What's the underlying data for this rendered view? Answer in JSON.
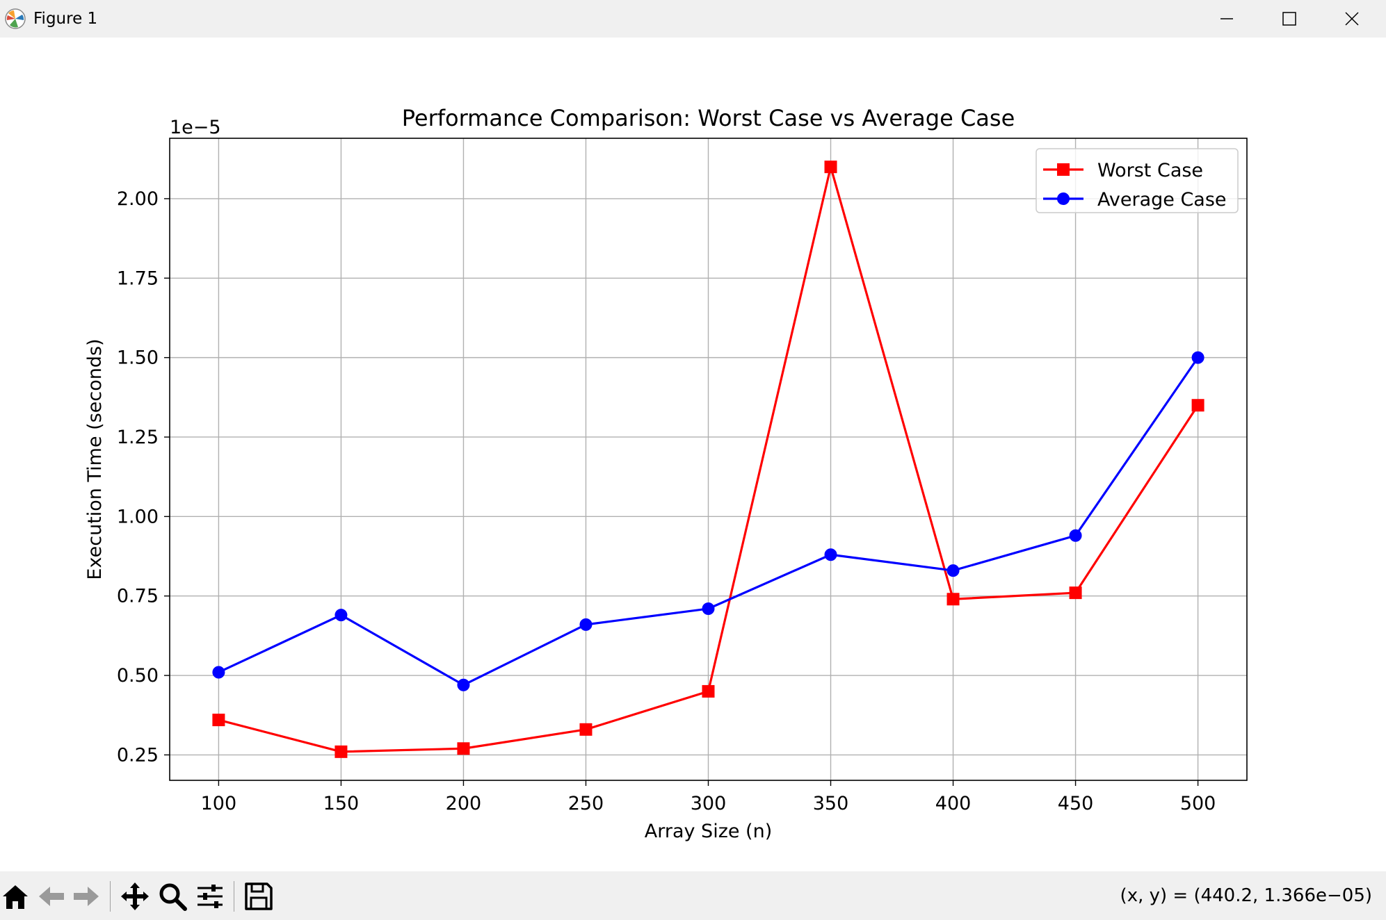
{
  "window": {
    "title": "Figure 1",
    "icon": "matplotlib-logo-icon"
  },
  "toolbar": {
    "buttons": [
      "home-icon",
      "back-arrow-icon",
      "forward-arrow-icon",
      "pan-icon",
      "zoom-icon",
      "configure-subplots-icon",
      "save-icon"
    ],
    "coords": "(x, y) = (440.2, 1.366e−05)"
  },
  "chart_data": {
    "type": "line",
    "title": "Performance Comparison: Worst Case vs Average Case",
    "xlabel": "Array Size (n)",
    "ylabel": "Execution Time (seconds)",
    "offset_text": "1e−5",
    "x": [
      100,
      150,
      200,
      250,
      300,
      350,
      400,
      450,
      500
    ],
    "xlim": [
      80,
      520
    ],
    "ylim": [
      1.7e-06,
      2.19e-05
    ],
    "xticks": [
      100,
      150,
      200,
      250,
      300,
      350,
      400,
      450,
      500
    ],
    "xtick_labels": [
      "100",
      "150",
      "200",
      "250",
      "300",
      "350",
      "400",
      "450",
      "500"
    ],
    "yticks": [
      2.5e-06,
      5e-06,
      7.5e-06,
      1e-05,
      1.25e-05,
      1.5e-05,
      1.75e-05,
      2e-05
    ],
    "ytick_labels": [
      "0.25",
      "0.50",
      "0.75",
      "1.00",
      "1.25",
      "1.50",
      "1.75",
      "2.00"
    ],
    "grid": true,
    "legend_position": "top-right",
    "series": [
      {
        "name": "Worst Case",
        "color": "#ff0000",
        "marker": "square",
        "values": [
          3.6e-06,
          2.6e-06,
          2.7e-06,
          3.3e-06,
          4.5e-06,
          2.1e-05,
          7.4e-06,
          7.6e-06,
          1.35e-05
        ]
      },
      {
        "name": "Average Case",
        "color": "#0000ff",
        "marker": "circle",
        "values": [
          5.1e-06,
          6.9e-06,
          4.7e-06,
          6.6e-06,
          7.1e-06,
          8.8e-06,
          8.3e-06,
          9.4e-06,
          1.5e-05
        ]
      }
    ]
  }
}
